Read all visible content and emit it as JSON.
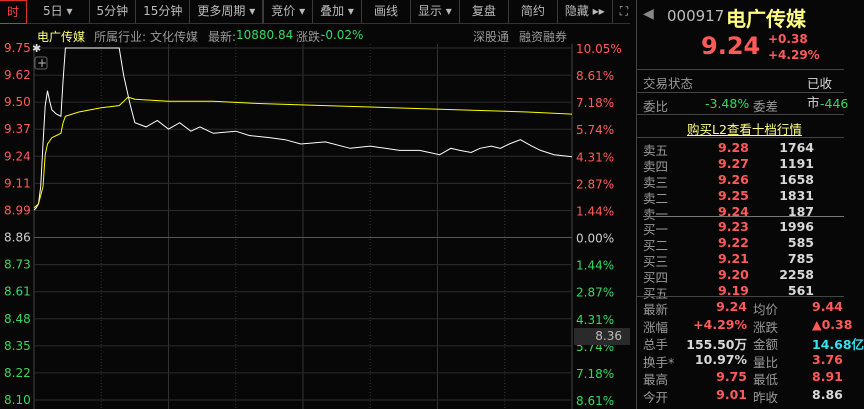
{
  "toolbar": {
    "tabs": [
      "时",
      "5日 ▾",
      "5分钟",
      "15分钟",
      "更多周期 ▾"
    ],
    "right": [
      "竞价 ▾",
      "叠加 ▾",
      "画线",
      "显示 ▾",
      "复盘",
      "简约",
      "隐藏 ▸▸"
    ]
  },
  "info": {
    "name": "电广传媒",
    "industry_label": "所属行业:",
    "industry": "文化传媒",
    "latest_label": "最新:",
    "latest": "10880.84",
    "change_label": "涨跌:",
    "change": "-0.02%",
    "tag1": "深股通",
    "tag2": "融资融券"
  },
  "colors": {
    "up": "#ff5a5a",
    "down": "#36d760",
    "price_line": "#ffffff",
    "avg_line": "#ffff00",
    "bg": "#070707"
  },
  "cursor_price": "8.36",
  "chart_data": {
    "type": "line",
    "prev_close": 8.86,
    "y_ticks": [
      "9.75",
      "9.62",
      "9.50",
      "9.37",
      "9.24",
      "9.11",
      "8.99",
      "8.86",
      "8.73",
      "8.61",
      "8.48",
      "8.35",
      "8.22",
      "8.10"
    ],
    "pct_ticks": [
      "10.05%",
      "8.61%",
      "7.18%",
      "5.74%",
      "4.31%",
      "2.87%",
      "1.44%",
      "0.00%",
      "1.44%",
      "2.87%",
      "4.31%",
      "5.74%",
      "7.18%",
      "8.61%"
    ],
    "ylim": [
      8.1,
      9.75
    ],
    "xlim_minutes": [
      0,
      240
    ],
    "series": [
      {
        "key": "price",
        "x": [
          0,
          1,
          2,
          3,
          4,
          5,
          6,
          7,
          8,
          10,
          12,
          13,
          14,
          20,
          30,
          38,
          40,
          43,
          45,
          50,
          55,
          60,
          65,
          70,
          74,
          80,
          90,
          96,
          105,
          112,
          119,
          130,
          141,
          150,
          163,
          172,
          181,
          186,
          190,
          195,
          199,
          204,
          208,
          212,
          217,
          222,
          226,
          232,
          240
        ],
        "y": [
          8.99,
          9.0,
          9.02,
          9.1,
          9.3,
          9.48,
          9.55,
          9.5,
          9.46,
          9.44,
          9.43,
          9.6,
          9.75,
          9.75,
          9.75,
          9.75,
          9.62,
          9.48,
          9.4,
          9.38,
          9.41,
          9.37,
          9.4,
          9.36,
          9.38,
          9.35,
          9.36,
          9.34,
          9.33,
          9.32,
          9.3,
          9.31,
          9.28,
          9.29,
          9.27,
          9.27,
          9.25,
          9.28,
          9.27,
          9.26,
          9.28,
          9.29,
          9.28,
          9.3,
          9.32,
          9.29,
          9.27,
          9.25,
          9.24
        ]
      },
      {
        "key": "avg",
        "x": [
          0,
          2,
          4,
          5,
          6,
          8,
          10,
          12,
          13,
          14,
          20,
          30,
          38,
          40,
          42,
          45,
          60,
          80,
          100,
          130,
          160,
          190,
          220,
          240
        ],
        "y": [
          9.0,
          9.02,
          9.1,
          9.25,
          9.3,
          9.33,
          9.34,
          9.35,
          9.4,
          9.43,
          9.45,
          9.47,
          9.48,
          9.5,
          9.52,
          9.51,
          9.5,
          9.5,
          9.49,
          9.48,
          9.47,
          9.46,
          9.45,
          9.44
        ]
      }
    ]
  },
  "quote": {
    "code": "000917",
    "name": "电广传媒",
    "price": "9.24",
    "change": "+0.38",
    "pct": "+4.29%",
    "status_label": "交易状态",
    "status": "已收市",
    "wb_label": "委比",
    "wb": "-3.48%",
    "wc_label": "委差",
    "wc": "-446",
    "l2": "购买L2查看十档行情",
    "asks": [
      [
        "卖五",
        "9.28",
        "1764"
      ],
      [
        "卖四",
        "9.27",
        "1191"
      ],
      [
        "卖三",
        "9.26",
        "1658"
      ],
      [
        "卖二",
        "9.25",
        "1831"
      ],
      [
        "卖一",
        "9.24",
        "187"
      ]
    ],
    "bids": [
      [
        "买一",
        "9.23",
        "1996"
      ],
      [
        "买二",
        "9.22",
        "585"
      ],
      [
        "买三",
        "9.21",
        "785"
      ],
      [
        "买四",
        "9.20",
        "2258"
      ],
      [
        "买五",
        "9.19",
        "561"
      ]
    ],
    "stats": [
      [
        "最新",
        "9.24",
        "red",
        "均价",
        "9.44",
        "red"
      ],
      [
        "涨幅",
        "+4.29%",
        "red",
        "涨跌",
        "▲0.38",
        "red"
      ],
      [
        "总手",
        "155.50万",
        "wht",
        "金额",
        "14.68亿",
        "cyan"
      ],
      [
        "换手*",
        "10.97%",
        "wht",
        "量比",
        "3.76",
        "red"
      ],
      [
        "最高",
        "9.75",
        "red",
        "最低",
        "8.91",
        "red"
      ],
      [
        "今开",
        "9.01",
        "red",
        "昨收",
        "8.86",
        "wht"
      ]
    ]
  }
}
